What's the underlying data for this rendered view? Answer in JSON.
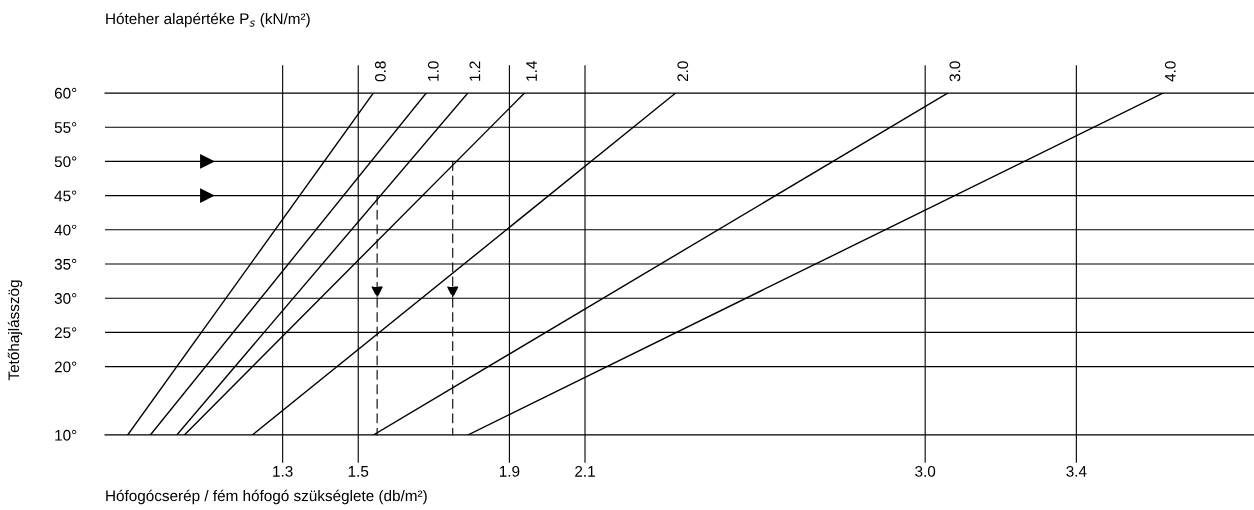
{
  "chart_data": {
    "type": "line",
    "title": "Hóteher alapértéke P$_{s}$ (kN/m²)",
    "xlabel": "Hófogócserép / fém hófogó szükséglete (db/m²)",
    "ylabel": "Tetőhajlásszög",
    "series": [
      {
        "name": "0.8",
        "color": "#000000",
        "x": [
          0.89,
          1.54
        ],
        "values": [
          10,
          60
        ]
      },
      {
        "name": "1.0",
        "color": "#000000",
        "x": [
          0.95,
          1.68
        ],
        "values": [
          10,
          60
        ]
      },
      {
        "name": "1.2",
        "color": "#000000",
        "x": [
          1.02,
          1.79
        ],
        "values": [
          10,
          60
        ]
      },
      {
        "name": "1.4",
        "color": "#000000",
        "x": [
          1.04,
          1.94
        ],
        "values": [
          10,
          60
        ]
      },
      {
        "name": "2.0",
        "color": "#000000",
        "x": [
          1.22,
          2.34
        ],
        "values": [
          10,
          60
        ]
      },
      {
        "name": "3.0",
        "color": "#000000",
        "x": [
          1.54,
          3.06
        ],
        "values": [
          10,
          60
        ]
      },
      {
        "name": "4.0",
        "color": "#000000",
        "x": [
          1.79,
          3.63
        ],
        "values": [
          10,
          60
        ]
      }
    ],
    "xlim": [
      0.83,
      3.87
    ],
    "xticks": [
      1.3,
      1.5,
      1.9,
      2.1,
      {
        "value": 3.0,
        "label": "3.0"
      },
      3.4
    ],
    "ylim": [
      10,
      60
    ],
    "yticks": [
      {
        "value": 10,
        "label": "10°"
      },
      {
        "value": 20,
        "label": "20°"
      },
      {
        "value": 25,
        "label": "25°"
      },
      {
        "value": 30,
        "label": "30°"
      },
      {
        "value": 35,
        "label": "35°"
      },
      {
        "value": 40,
        "label": "40°"
      },
      {
        "value": 45,
        "label": "45°"
      },
      {
        "value": 50,
        "label": "50°"
      },
      {
        "value": 55,
        "label": "55°"
      },
      {
        "value": 60,
        "label": "60°"
      }
    ],
    "grid": true,
    "marker": "none",
    "line_style": "solid",
    "legend": "top"
  }
}
